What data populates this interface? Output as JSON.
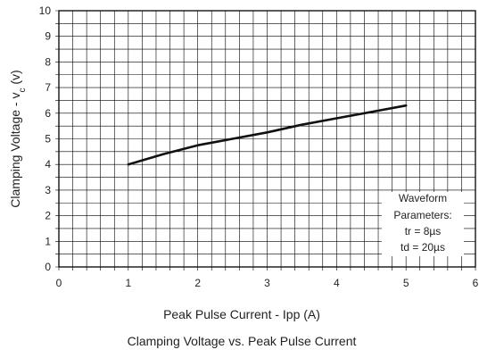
{
  "chart_data": {
    "type": "line",
    "title": "",
    "caption": "Clamping Voltage vs. Peak Pulse Current",
    "xlabel": "Peak Pulse Current - Ipp (A)",
    "ylabel_prefix": "Clamping Voltage - v",
    "ylabel_subscript": "c",
    "ylabel_suffix": " (v)",
    "xlim": [
      0,
      6
    ],
    "ylim": [
      0,
      10
    ],
    "x_ticks": [
      "0",
      "1",
      "2",
      "3",
      "4",
      "5",
      "6"
    ],
    "y_ticks": [
      "0",
      "1",
      "2",
      "3",
      "4",
      "5",
      "6",
      "7",
      "8",
      "9",
      "10"
    ],
    "grid": true,
    "grid_minor_x": 0.2,
    "grid_minor_y": 0.5,
    "line_color": "#111111",
    "grid_color": "#000000",
    "series": [
      {
        "x": [
          1.0,
          1.5,
          2.0,
          2.5,
          3.0,
          3.5,
          4.0,
          4.5,
          5.0
        ],
        "y": [
          4.0,
          4.4,
          4.75,
          5.0,
          5.25,
          5.55,
          5.8,
          6.05,
          6.3
        ]
      }
    ],
    "annotation": {
      "lines": [
        "Waveform",
        "Parameters:",
        "tr = 8µs",
        "td = 20µs"
      ]
    }
  }
}
